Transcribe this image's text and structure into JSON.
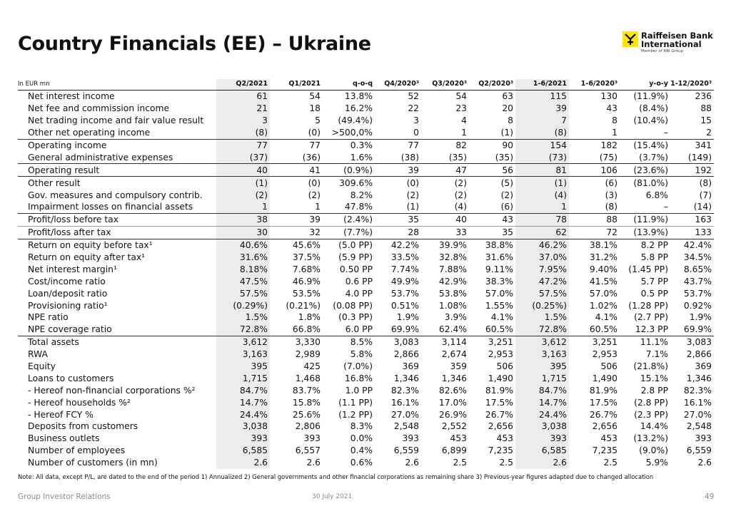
{
  "header": {
    "title": "Country Financials (EE) – Ukraine",
    "logo_name": "Raiffeisen Bank International",
    "logo_sub": "Member of RBI Group"
  },
  "table": {
    "columns": [
      "In EUR mn",
      "Q2/2021",
      "Q1/2021",
      "q-o-q",
      "Q4/2020³",
      "Q3/2020³",
      "Q2/2020³",
      "1-6/2021",
      "1-6/2020³",
      "y-o-y",
      "1-12/2020³"
    ],
    "rows": [
      [
        "Net interest income",
        "61",
        "54",
        "13.8%",
        "52",
        "54",
        "63",
        "115",
        "130",
        "(11.9%)",
        "236"
      ],
      [
        "Net fee and commission income",
        "21",
        "18",
        "16.2%",
        "22",
        "23",
        "20",
        "39",
        "43",
        "(8.4%)",
        "88"
      ],
      [
        "Net trading income and fair value result",
        "3",
        "5",
        "(49.4%)",
        "3",
        "4",
        "8",
        "7",
        "8",
        "(10.4%)",
        "15"
      ],
      [
        "Other net operating income",
        "(8)",
        "(0)",
        ">500,0%",
        "0",
        "1",
        "(1)",
        "(8)",
        "1",
        "–",
        "2"
      ],
      [
        "Operating income",
        "77",
        "77",
        "0.3%",
        "77",
        "82",
        "90",
        "154",
        "182",
        "(15.4%)",
        "341"
      ],
      [
        "General administrative expenses",
        "(37)",
        "(36)",
        "1.6%",
        "(38)",
        "(35)",
        "(35)",
        "(73)",
        "(75)",
        "(3.7%)",
        "(149)"
      ],
      [
        "Operating result",
        "40",
        "41",
        "(0.9%)",
        "39",
        "47",
        "56",
        "81",
        "106",
        "(23.6%)",
        "192"
      ],
      [
        "Other result",
        "(1)",
        "(0)",
        "309.6%",
        "(0)",
        "(2)",
        "(5)",
        "(1)",
        "(6)",
        "(81.0%)",
        "(8)"
      ],
      [
        "Gov. measures and compulsory contrib.",
        "(2)",
        "(2)",
        "8.2%",
        "(2)",
        "(2)",
        "(2)",
        "(4)",
        "(3)",
        "6.8%",
        "(7)"
      ],
      [
        "Impairment losses on financial assets",
        "1",
        "1",
        "47.8%",
        "(1)",
        "(4)",
        "(6)",
        "1",
        "(8)",
        "–",
        "(14)"
      ],
      [
        "Profit/loss before tax",
        "38",
        "39",
        "(2.4%)",
        "35",
        "40",
        "43",
        "78",
        "88",
        "(11.9%)",
        "163"
      ],
      [
        "Profit/loss after tax",
        "30",
        "32",
        "(7.7%)",
        "28",
        "33",
        "35",
        "62",
        "72",
        "(13.9%)",
        "133"
      ],
      [
        "Return on equity before tax¹",
        "40.6%",
        "45.6%",
        "(5.0 PP)",
        "42.2%",
        "39.9%",
        "38.8%",
        "46.2%",
        "38.1%",
        "8.2 PP",
        "42.4%"
      ],
      [
        "Return on equity after tax¹",
        "31.6%",
        "37.5%",
        "(5.9 PP)",
        "33.5%",
        "32.8%",
        "31.6%",
        "37.0%",
        "31.2%",
        "5.8 PP",
        "34.5%"
      ],
      [
        "Net interest margin¹",
        "8.18%",
        "7.68%",
        "0.50 PP",
        "7.74%",
        "7.88%",
        "9.11%",
        "7.95%",
        "9.40%",
        "(1.45 PP)",
        "8.65%"
      ],
      [
        "Cost/income ratio",
        "47.5%",
        "46.9%",
        "0.6 PP",
        "49.9%",
        "42.9%",
        "38.3%",
        "47.2%",
        "41.5%",
        "5.7 PP",
        "43.7%"
      ],
      [
        "Loan/deposit ratio",
        "57.5%",
        "53.5%",
        "4.0 PP",
        "53.7%",
        "53.8%",
        "57.0%",
        "57.5%",
        "57.0%",
        "0.5 PP",
        "53.7%"
      ],
      [
        "Provisioning ratio¹",
        "(0.29%)",
        "(0.21%)",
        "(0.08 PP)",
        "0.51%",
        "1.08%",
        "1.55%",
        "(0.25%)",
        "1.02%",
        "(1.28 PP)",
        "0.92%"
      ],
      [
        "NPE ratio",
        "1.5%",
        "1.8%",
        "(0.3 PP)",
        "1.9%",
        "3.9%",
        "4.1%",
        "1.5%",
        "4.1%",
        "(2.7 PP)",
        "1.9%"
      ],
      [
        "NPE coverage ratio",
        "72.8%",
        "66.8%",
        "6.0 PP",
        "69.9%",
        "62.4%",
        "60.5%",
        "72.8%",
        "60.5%",
        "12.3 PP",
        "69.9%"
      ],
      [
        "Total assets",
        "3,612",
        "3,330",
        "8.5%",
        "3,083",
        "3,114",
        "3,251",
        "3,612",
        "3,251",
        "11.1%",
        "3,083"
      ],
      [
        "RWA",
        "3,163",
        "2,989",
        "5.8%",
        "2,866",
        "2,674",
        "2,953",
        "3,163",
        "2,953",
        "7.1%",
        "2,866"
      ],
      [
        "Equity",
        "395",
        "425",
        "(7.0%)",
        "369",
        "359",
        "506",
        "395",
        "506",
        "(21.8%)",
        "369"
      ],
      [
        "Loans to customers",
        "1,715",
        "1,468",
        "16.8%",
        "1,346",
        "1,346",
        "1,490",
        "1,715",
        "1,490",
        "15.1%",
        "1,346"
      ],
      [
        " - Hereof non-financial corporations %²",
        "84.7%",
        "83.7%",
        "1.0 PP",
        "82.3%",
        "82.6%",
        "81.9%",
        "84.7%",
        "81.9%",
        "2.8 PP",
        "82.3%"
      ],
      [
        " - Hereof households %²",
        "14.7%",
        "15.8%",
        "(1.1 PP)",
        "16.1%",
        "17.0%",
        "17.5%",
        "14.7%",
        "17.5%",
        "(2.8 PP)",
        "16.1%"
      ],
      [
        " - Hereof FCY %",
        "24.4%",
        "25.6%",
        "(1.2 PP)",
        "27.0%",
        "26.9%",
        "26.7%",
        "24.4%",
        "26.7%",
        "(2.3 PP)",
        "27.0%"
      ],
      [
        "Deposits from customers",
        "3,038",
        "2,806",
        "8.3%",
        "2,548",
        "2,552",
        "2,656",
        "3,038",
        "2,656",
        "14.4%",
        "2,548"
      ],
      [
        "Business outlets",
        "393",
        "393",
        "0.0%",
        "393",
        "453",
        "453",
        "393",
        "453",
        "(13.2%)",
        "393"
      ],
      [
        "Number of employees",
        "6,585",
        "6,557",
        "0.4%",
        "6,559",
        "6,899",
        "7,235",
        "6,585",
        "7,235",
        "(9.0%)",
        "6,559"
      ],
      [
        "Number of customers (in mn)",
        "2.6",
        "2.6",
        "0.6%",
        "2.6",
        "2.5",
        "2.5",
        "2.6",
        "2.5",
        "5.9%",
        "2.6"
      ]
    ]
  },
  "note": "Note: All data, except P/L, are dated to the end of the period 1) Annualized  2) General governments and other financial corporations as remaining share  3) Previous-year figures adapted due to changed allocation",
  "footer": {
    "left": "Group Investor Relations",
    "date": "30 July 2021",
    "page": "49"
  }
}
